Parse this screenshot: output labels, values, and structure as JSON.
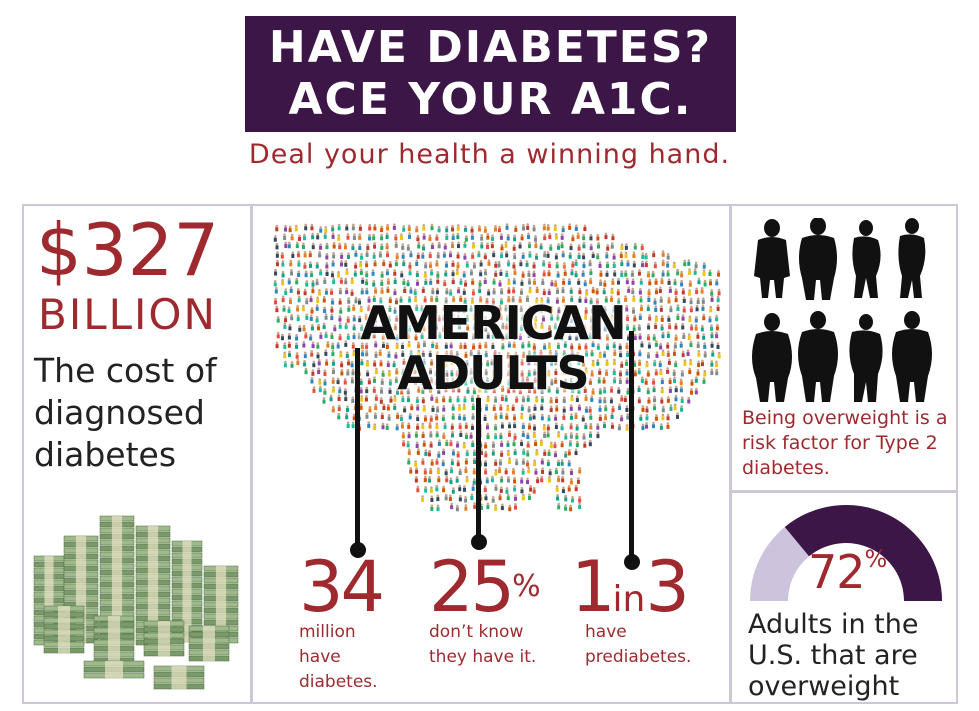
{
  "header": {
    "line1": "HAVE DIABETES?",
    "line2": "ACE YOUR A1C.",
    "tagline": "Deal your health a winning hand."
  },
  "cost": {
    "value": "$327",
    "unit": "BILLION",
    "description": "The cost of diagnosed diabetes"
  },
  "adults": {
    "headline_line1": "AMERICAN",
    "headline_line2": "ADULTS",
    "stats": [
      {
        "number": "34",
        "suffix": "",
        "label_lines": [
          "million",
          "have",
          "diabetes."
        ]
      },
      {
        "number": "25",
        "suffix": "%",
        "label_lines": [
          "don’t know",
          "they have it."
        ]
      },
      {
        "number_a": "1",
        "number_mid": "in",
        "number_b": "3",
        "label_lines": [
          "have",
          "prediabetes."
        ]
      }
    ]
  },
  "risk": {
    "text": "Being overweight is a risk factor for Type 2 diabetes."
  },
  "overweight": {
    "value": "72",
    "suffix": "%",
    "fraction": 0.72,
    "description": "Adults in the U.S. that are overweight"
  },
  "colors": {
    "purple": "#3b1646",
    "accent_red": "#9e2a2f",
    "light_lavender": "#cdc3dc",
    "border": "#cfc6d6"
  },
  "icons": [
    "money-stacks-image",
    "people-crowd-map",
    "overweight-silhouettes"
  ]
}
